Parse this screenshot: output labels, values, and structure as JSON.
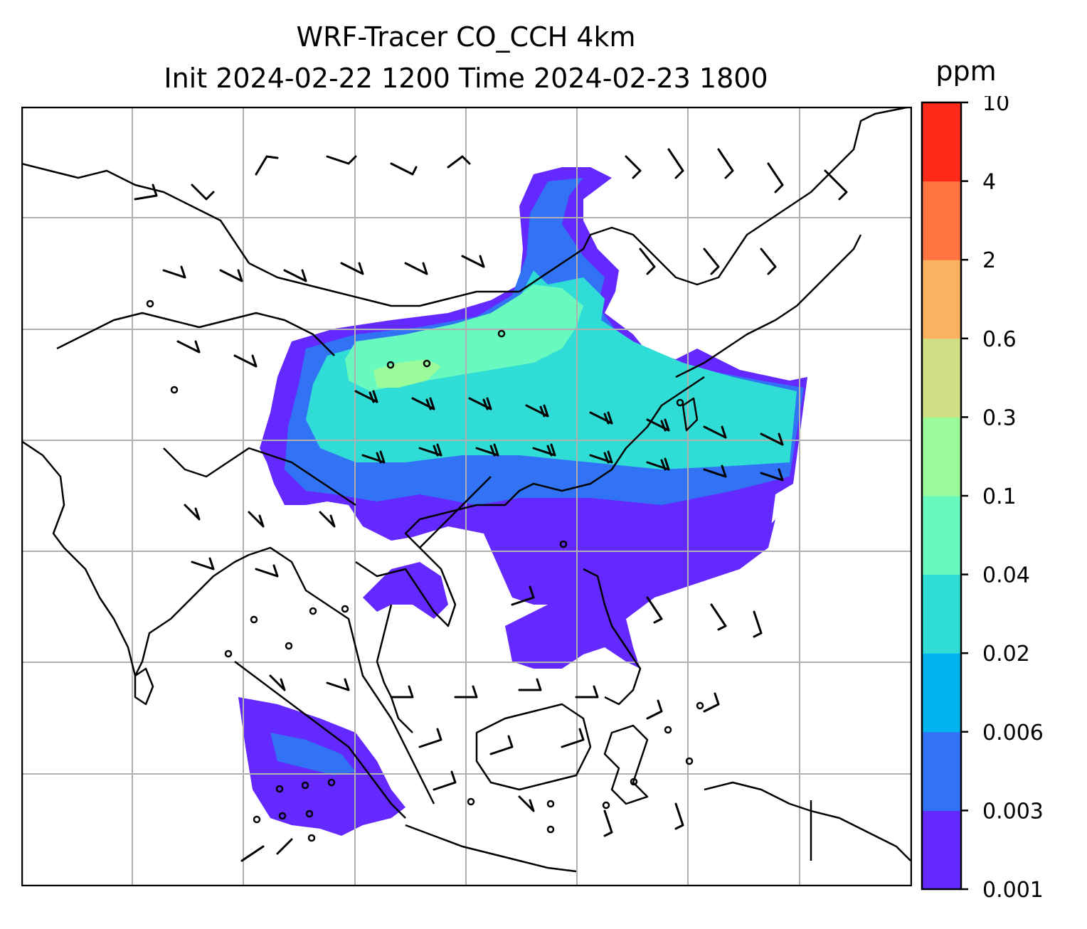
{
  "title": {
    "line1": "WRF-Tracer CO_CCH 4km",
    "line2": "Init 2024-02-22 1200 Time 2024-02-23 1800"
  },
  "colorbar": {
    "unit": "ppm",
    "levels": [
      "0.001",
      "0.003",
      "0.006",
      "0.02",
      "0.04",
      "0.1",
      "0.3",
      "0.6",
      "2",
      "4",
      "10"
    ],
    "colors": [
      "#6329ff",
      "#3272f4",
      "#00b2ee",
      "#30dcd6",
      "#67f9bd",
      "#9bfa99",
      "#cfe084",
      "#fbb260",
      "#ff7440",
      "#ff2a17"
    ]
  },
  "map": {
    "gridlines": true,
    "coastline_color": "#000000",
    "grid_color": "#b0b0b0",
    "wind_barbs": true,
    "calm_markers": true
  }
}
